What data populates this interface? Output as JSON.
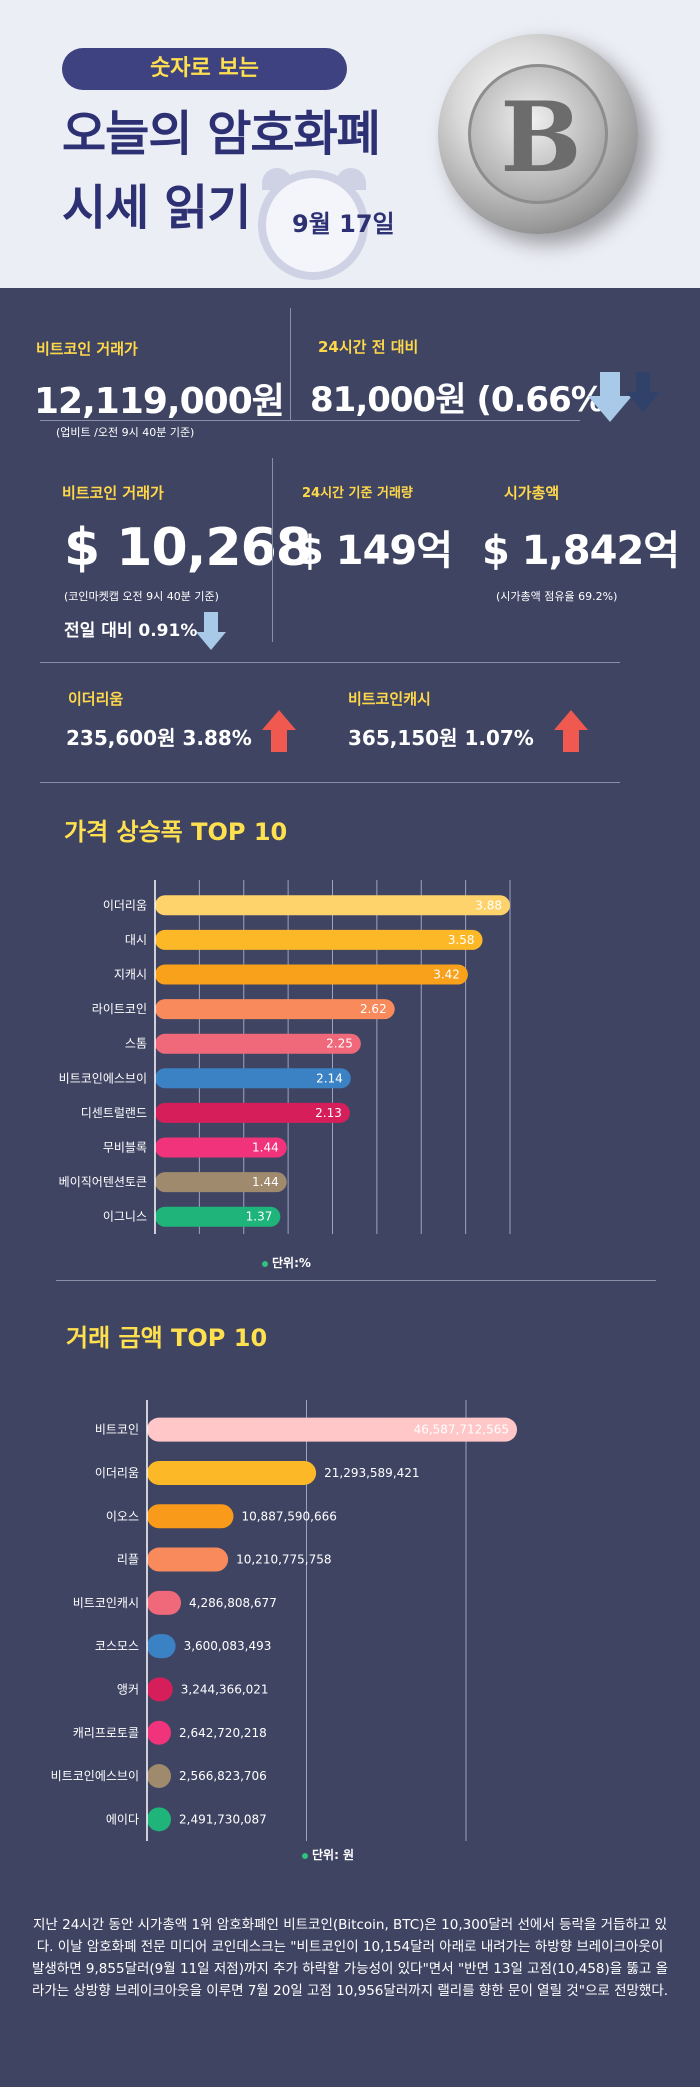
{
  "header": {
    "pill": "숫자로 보는",
    "title_line1": "오늘의 암호화폐",
    "title_line2": "시세 읽기",
    "date": "9월 17일"
  },
  "stats": {
    "btc_krw_label": "비트코인 거래가",
    "btc_krw_value": "12,119,000원",
    "btc_krw_note": "(업비트 /오전 9시 40분 기준)",
    "change24_label": "24시간 전 대비",
    "change24_value": "81,000원 (0.66%)",
    "btc_usd_label": "비트코인 거래가",
    "btc_usd_value": "$ 10,268",
    "btc_usd_note": "(코인마켓캡 오전 9시 40분  기준)",
    "btc_usd_change": "전일 대비 0.91%",
    "volume_label": "24시간 기준 거래량",
    "volume_value": "$ 149억",
    "mcap_label": "시가총액",
    "mcap_value": "$ 1,842억",
    "mcap_note": "(시가총액 점유율 69.2%)",
    "eth_label": "이더리움",
    "eth_value": "235,600원  3.88%",
    "bch_label": "비트코인캐시",
    "bch_value": "365,150원   1.07%"
  },
  "colors": {
    "background": "#3f4463",
    "accent_yellow": "#ffd84a",
    "arrow_down": "#a9c9e8",
    "arrow_up": "#f0594f"
  },
  "chart1_title": "가격 상승폭 TOP 10",
  "chart2_title": "거래 금액 TOP 10",
  "chart_data": [
    {
      "type": "bar",
      "orientation": "horizontal",
      "title": "가격 상승폭 TOP 10",
      "unit": "단위:%",
      "categories": [
        "이더리움",
        "대시",
        "지캐시",
        "라이트코인",
        "스톰",
        "비트코인에스브이",
        "디센트럴랜드",
        "무비블록",
        "베이직어텐션토큰",
        "이그니스"
      ],
      "values": [
        3.88,
        3.58,
        3.42,
        2.62,
        2.25,
        2.14,
        2.13,
        1.44,
        1.44,
        1.37
      ],
      "labels": [
        "3.88",
        "3.58",
        "3.42",
        "2.62",
        "2.25",
        "2.14",
        "2.13",
        "1.44",
        "1.44",
        "1.37"
      ],
      "colors": [
        "#ffd36b",
        "#fdb827",
        "#f9a11b",
        "#f88a5c",
        "#f0697a",
        "#3a82c4",
        "#d61f5a",
        "#f0337a",
        "#a08a6e",
        "#1fb57a"
      ],
      "grid": true
    },
    {
      "type": "bar",
      "orientation": "horizontal",
      "title": "거래 금액 TOP 10",
      "unit": "단위: 원",
      "categories": [
        "비트코인",
        "이더리움",
        "이오스",
        "리플",
        "비트코인캐시",
        "코스모스",
        "앵커",
        "캐리프로토콜",
        "비트코인에스브이",
        "에이다"
      ],
      "values": [
        46587712565,
        21293589421,
        10887590666,
        10210775758,
        4286808677,
        3600083493,
        3244366021,
        2642720218,
        2566823706,
        2491730087
      ],
      "labels": [
        "46,587,712,565",
        "21,293,589,421",
        "10,887,590,666",
        "10,210,775,758",
        "4,286,808,677",
        "3,600,083,493",
        "3,244,366,021",
        "2,642,720,218",
        "2,566,823,706",
        "2,491,730,087"
      ],
      "colors": [
        "#ffc7c7",
        "#fdb827",
        "#f99a1b",
        "#f88a5c",
        "#f0697a",
        "#3a82c4",
        "#d61f5a",
        "#f0337a",
        "#a08a6e",
        "#1fb57a"
      ],
      "grid": true
    }
  ],
  "bottom_text": "지난 24시간 동안 시가총액 1위 암호화폐인 비트코인(Bitcoin, BTC)은 10,300달러 선에서 등락을 거듭하고 있다. 이날 암호화폐 전문 미디어 코인데스크는 \"비트코인이 10,154달러 아래로 내려가는 하방향 브레이크아웃이 발생하면 9,855달러(9월 11일 저점)까지 추가 하락할 가능성이 있다\"면서 \"반면 13일 고점(10,458)을 뚫고 올라가는 상방향 브레이크아웃을 이루면 7월 20일 고점 10,956달러까지 랠리를 향한 문이 열릴 것\"으로 전망했다."
}
